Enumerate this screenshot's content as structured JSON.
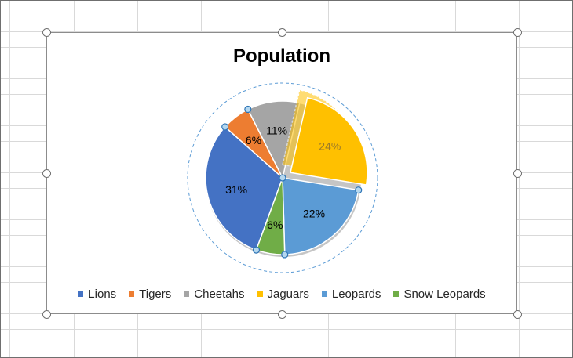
{
  "chart_data": {
    "type": "pie",
    "title": "Population",
    "categories": [
      "Lions",
      "Tigers",
      "Cheetahs",
      "Jaguars",
      "Leopards",
      "Snow Leopards"
    ],
    "values": [
      31,
      6,
      11,
      24,
      22,
      6
    ],
    "data_labels": [
      "31%",
      "6%",
      "11%",
      "24%",
      "22%",
      "6%"
    ],
    "colors": [
      "#4472C4",
      "#ED7D31",
      "#A5A5A5",
      "#FFC000",
      "#5B9BD5",
      "#70AD47"
    ],
    "exploded_slice": "Jaguars",
    "legend": "bottom"
  }
}
